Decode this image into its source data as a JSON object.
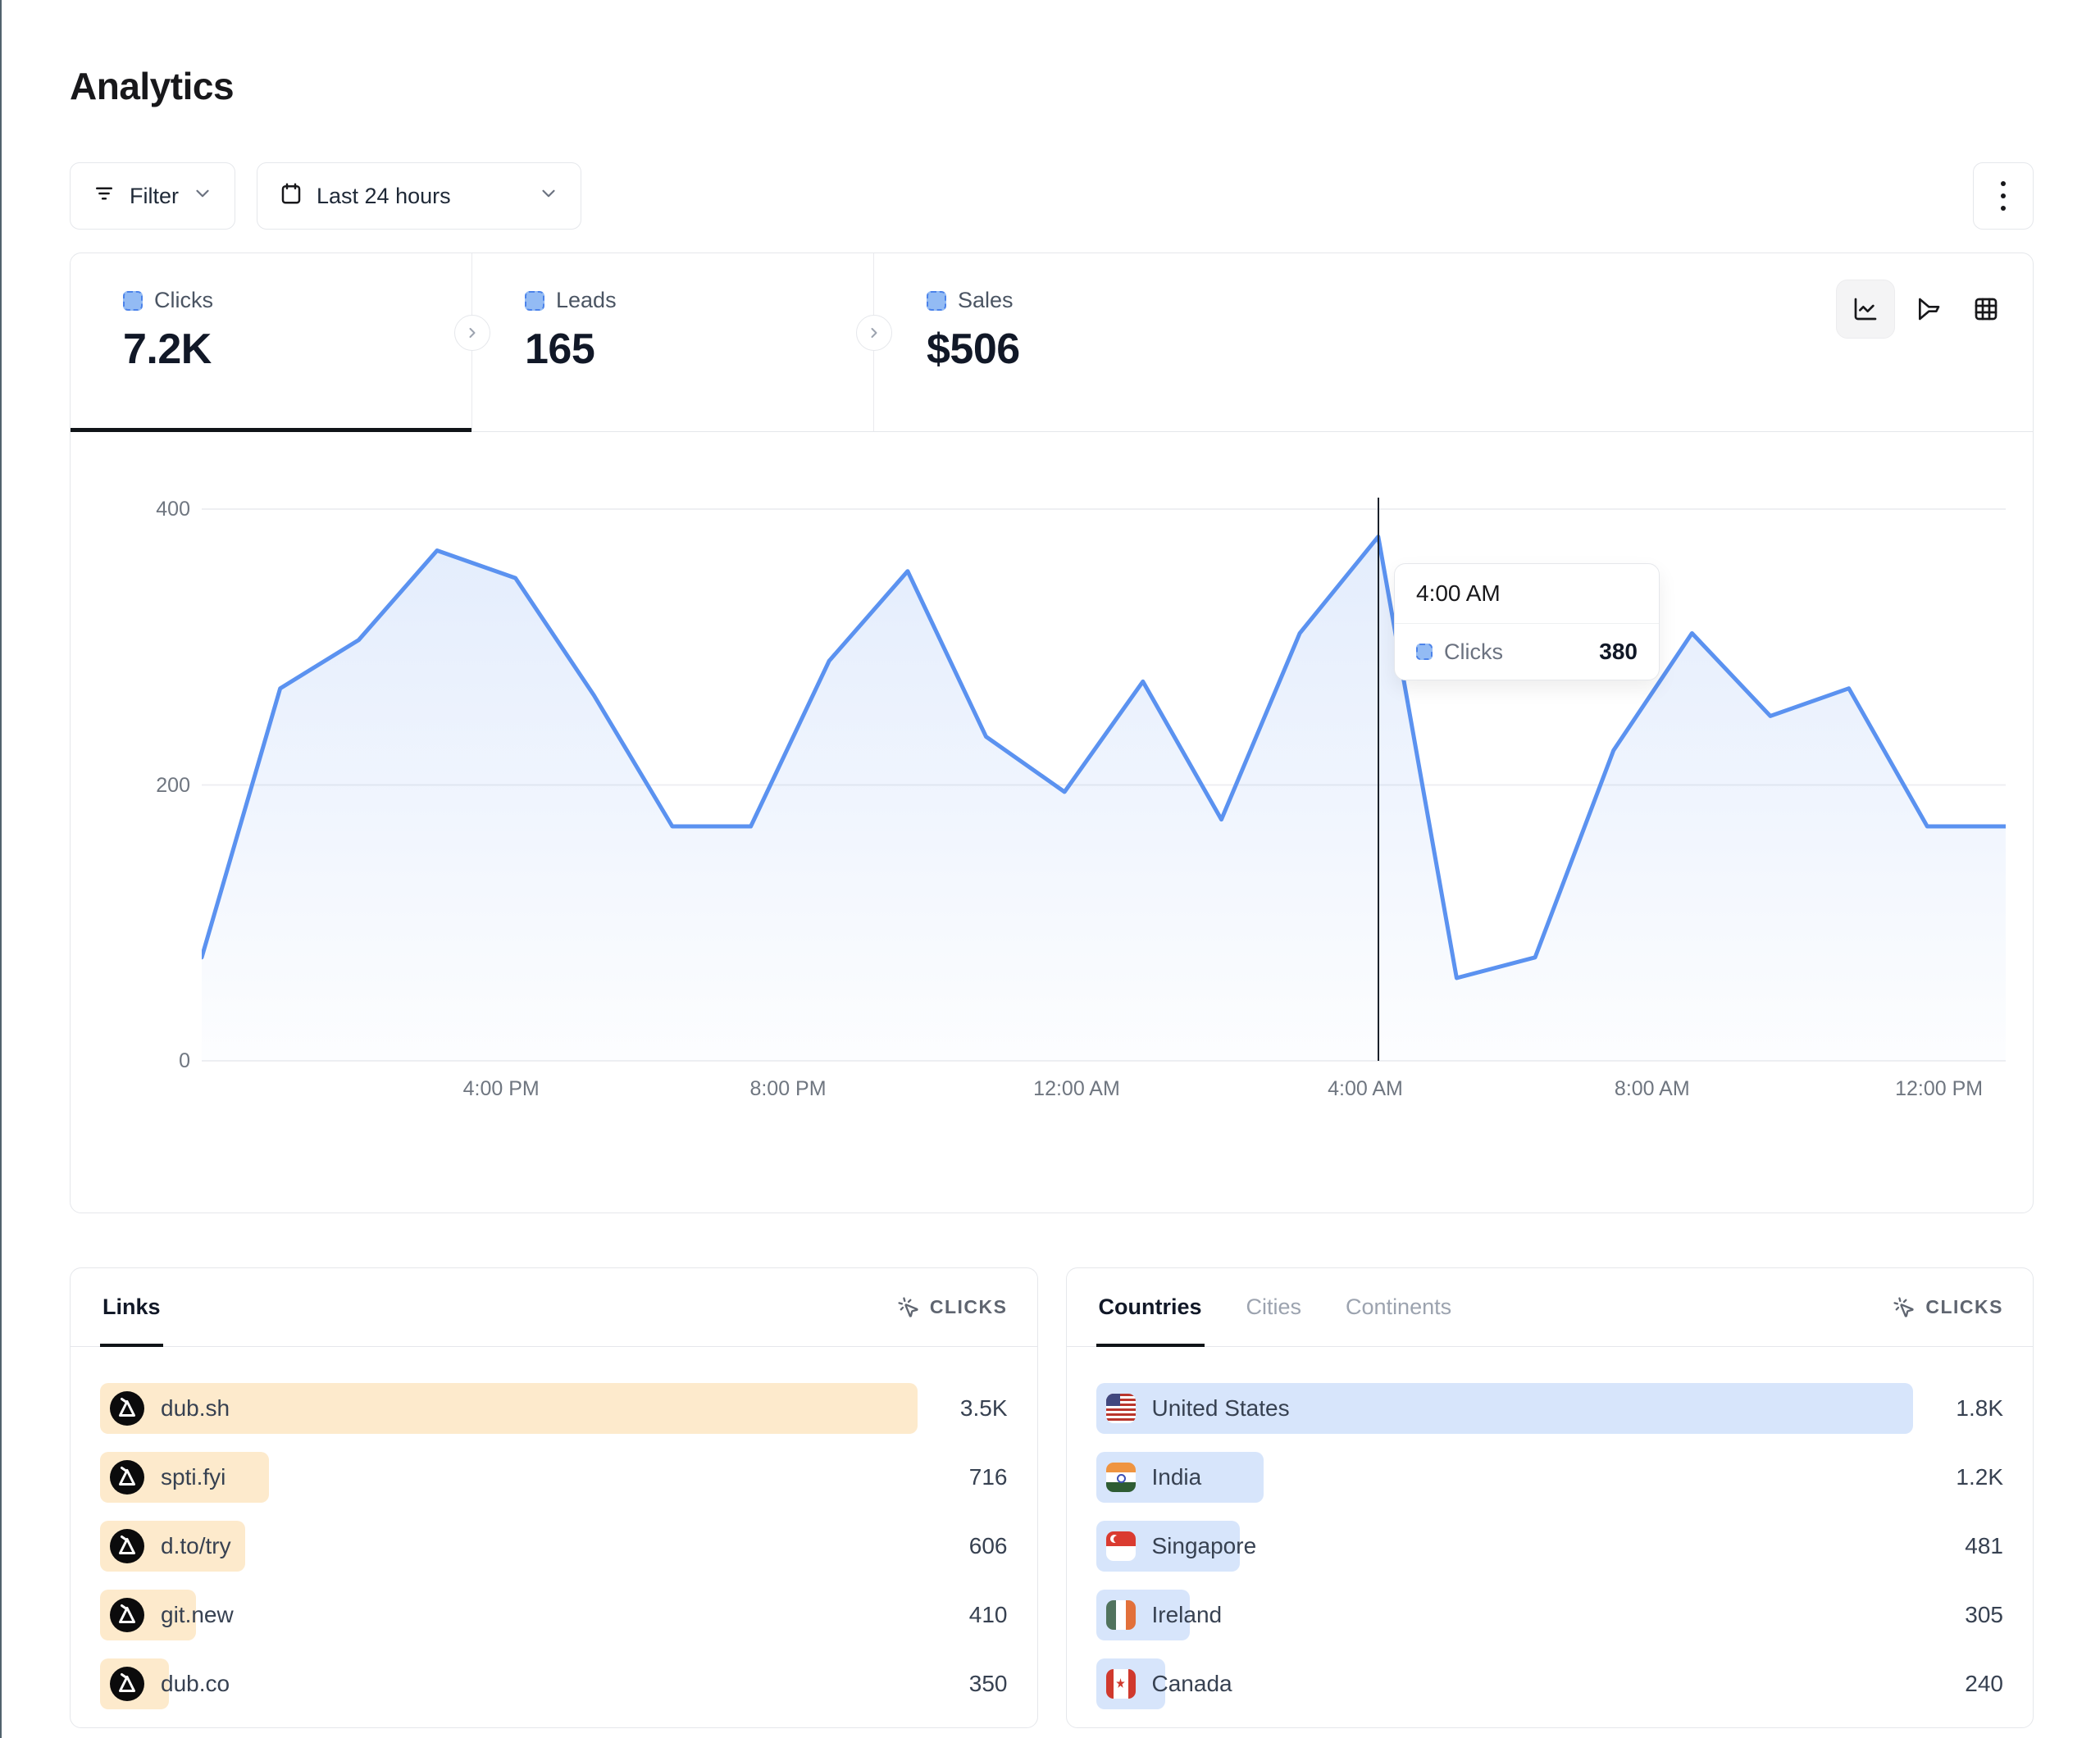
{
  "page": {
    "title": "Analytics"
  },
  "toolbar": {
    "filter_label": "Filter",
    "date_range_label": "Last 24 hours"
  },
  "stats": [
    {
      "label": "Clicks",
      "value": "7.2K",
      "active": true
    },
    {
      "label": "Leads",
      "value": "165",
      "active": false
    },
    {
      "label": "Sales",
      "value": "$506",
      "active": false
    }
  ],
  "chart_data": {
    "type": "area",
    "series_name": "Clicks",
    "x": [
      "1:00 PM",
      "2:00 PM",
      "3:00 PM",
      "4:00 PM",
      "5:00 PM",
      "6:00 PM",
      "7:00 PM",
      "8:00 PM",
      "9:00 PM",
      "10:00 PM",
      "11:00 PM",
      "12:00 AM",
      "1:00 AM",
      "2:00 AM",
      "3:00 AM",
      "4:00 AM",
      "5:00 AM",
      "6:00 AM",
      "7:00 AM",
      "8:00 AM",
      "9:00 AM",
      "10:00 AM",
      "11:00 AM",
      "12:00 PM"
    ],
    "values": [
      75,
      270,
      305,
      370,
      350,
      265,
      170,
      170,
      290,
      355,
      235,
      195,
      275,
      175,
      310,
      380,
      60,
      75,
      225,
      310,
      250,
      270,
      170,
      170
    ],
    "x_tick_labels": [
      "4:00 PM",
      "8:00 PM",
      "12:00 AM",
      "4:00 AM",
      "8:00 AM",
      "12:00 PM"
    ],
    "x_tick_pos": [
      0.166,
      0.325,
      0.485,
      0.645,
      0.804,
      0.963
    ],
    "y_ticks": [
      0,
      200,
      400
    ],
    "ylim": [
      0,
      400
    ],
    "grid": "horizontal",
    "legend_position": "none",
    "title": "",
    "xlabel": "",
    "ylabel": ""
  },
  "tooltip": {
    "time": "4:00 AM",
    "series": "Clicks",
    "value": "380",
    "point_index": 15
  },
  "links_panel": {
    "tabs": [
      {
        "label": "Links",
        "active": true
      }
    ],
    "metric_label": "CLICKS",
    "rows": [
      {
        "label": "dub.sh",
        "value": "3.5K",
        "bar_pct": 100
      },
      {
        "label": "spti.fyi",
        "value": "716",
        "bar_pct": 20.7
      },
      {
        "label": "d.to/try",
        "value": "606",
        "bar_pct": 17.8
      },
      {
        "label": "git.new",
        "value": "410",
        "bar_pct": 11.7
      },
      {
        "label": "dub.co",
        "value": "350",
        "bar_pct": 8.4
      }
    ]
  },
  "countries_panel": {
    "tabs": [
      {
        "label": "Countries",
        "active": true
      },
      {
        "label": "Cities",
        "active": false
      },
      {
        "label": "Continents",
        "active": false
      }
    ],
    "metric_label": "CLICKS",
    "rows": [
      {
        "label": "United States",
        "value": "1.8K",
        "flag": "us",
        "bar_pct": 100
      },
      {
        "label": "India",
        "value": "1.2K",
        "flag": "in",
        "bar_pct": 20.5
      },
      {
        "label": "Singapore",
        "value": "481",
        "flag": "sg",
        "bar_pct": 17.6
      },
      {
        "label": "Ireland",
        "value": "305",
        "flag": "ie",
        "bar_pct": 11.5
      },
      {
        "label": "Canada",
        "value": "240",
        "flag": "ca",
        "bar_pct": 8.5
      }
    ]
  },
  "colors": {
    "line": "#5b92f0",
    "area_top": "rgba(91,146,240,0.17)",
    "area_bottom": "rgba(91,146,240,0.015)",
    "grid": "#ecedf0",
    "links_bar": "#fdeacc",
    "countries_bar": "#d7e5fb",
    "crosshair": "#1b212b",
    "legend_fill": "#93bbf4",
    "legend_border": "#4c83ea"
  }
}
